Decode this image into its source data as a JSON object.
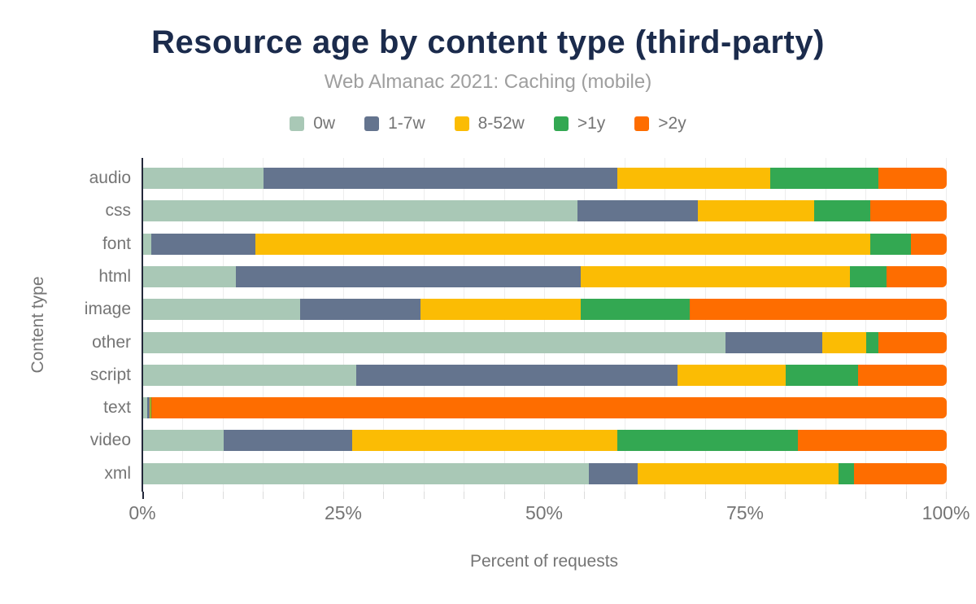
{
  "header": {
    "title": "Resource age by content type (third-party)",
    "subtitle": "Web Almanac 2021: Caching (mobile)"
  },
  "colors": {
    "title": "#1b2b4c",
    "subtitle": "#9e9e9e",
    "axis_text": "#757575",
    "axis_line": "#23283a",
    "gridline": "#ededed"
  },
  "legend": [
    {
      "label": "0w",
      "color": "#a9c8b6"
    },
    {
      "label": "1-7w",
      "color": "#64748e"
    },
    {
      "label": "8-52w",
      "color": "#fbbc04"
    },
    {
      "label": ">1y",
      "color": "#33a852"
    },
    {
      "label": ">2y",
      "color": "#fe6d00"
    }
  ],
  "chart_data": {
    "type": "bar",
    "stacked": true,
    "orientation": "horizontal",
    "title": "Resource age by content type (third-party)",
    "subtitle": "Web Almanac 2021: Caching (mobile)",
    "xlabel": "Percent of requests",
    "ylabel": "Content type",
    "xlim": [
      0,
      100
    ],
    "x_ticks": [
      {
        "value": 0,
        "label": "0%"
      },
      {
        "value": 25,
        "label": "25%"
      },
      {
        "value": 50,
        "label": "50%"
      },
      {
        "value": 75,
        "label": "75%"
      },
      {
        "value": 100,
        "label": "100%"
      }
    ],
    "grid_step": 5,
    "legend_position": "top",
    "categories": [
      "audio",
      "css",
      "font",
      "html",
      "image",
      "other",
      "script",
      "text",
      "video",
      "xml"
    ],
    "series": [
      {
        "name": "0w",
        "color": "#a9c8b6",
        "values": [
          15,
          54,
          1,
          11.5,
          19.5,
          72.5,
          26.5,
          0.5,
          10,
          55.5
        ]
      },
      {
        "name": "1-7w",
        "color": "#64748e",
        "values": [
          44,
          15,
          13,
          43,
          15,
          12,
          40,
          0.3,
          16,
          6
        ]
      },
      {
        "name": "8-52w",
        "color": "#fbbc04",
        "values": [
          19,
          14.5,
          76.5,
          33.5,
          20,
          5.5,
          13.5,
          0.1,
          33,
          25
        ]
      },
      {
        "name": ">1y",
        "color": "#33a852",
        "values": [
          13.5,
          7,
          5,
          4.5,
          13.5,
          1.5,
          9,
          0.1,
          22.5,
          2
        ]
      },
      {
        "name": ">2y",
        "color": "#fe6d00",
        "values": [
          8.5,
          9.5,
          4.5,
          7.5,
          32,
          8.5,
          11,
          99,
          18.5,
          11.5
        ]
      }
    ]
  }
}
